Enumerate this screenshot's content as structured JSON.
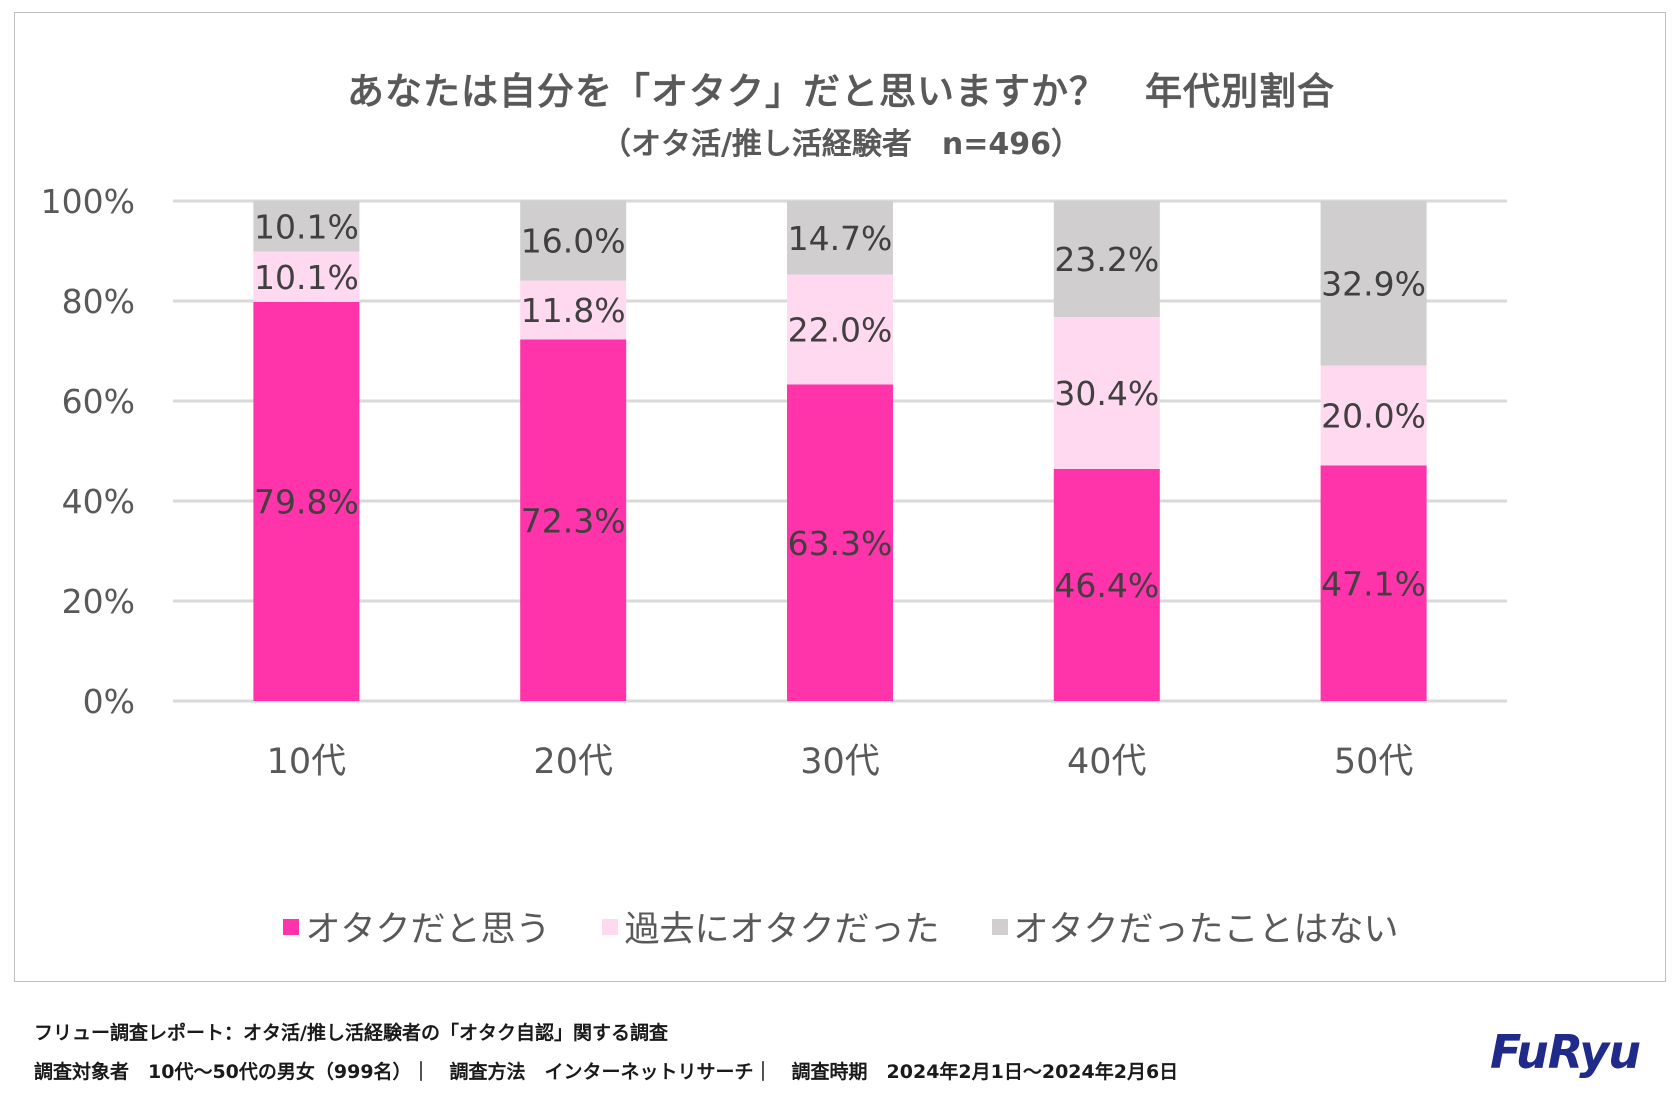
{
  "chart_data": {
    "type": "bar",
    "stacked": true,
    "title": "あなたは自分を「オタク」だと思いますか？　年代別割合",
    "subtitle": "（オタ活/推し活経験者　n=496）",
    "categories": [
      "10代",
      "20代",
      "30代",
      "40代",
      "50代"
    ],
    "series": [
      {
        "name": "オタクだと思う",
        "values": [
          79.8,
          72.3,
          63.3,
          46.4,
          47.1
        ],
        "labels": [
          "79.8%",
          "72.3%",
          "63.3%",
          "46.4%",
          "47.1%"
        ],
        "color": "#ff33aa"
      },
      {
        "name": "過去にオタクだった",
        "values": [
          10.1,
          11.8,
          22.0,
          30.4,
          20.0
        ],
        "labels": [
          "10.1%",
          "11.8%",
          "22.0%",
          "30.4%",
          "20.0%"
        ],
        "color": "#ffd9f0"
      },
      {
        "name": "オタクだったことはない",
        "values": [
          10.1,
          16.0,
          14.7,
          23.2,
          32.9
        ],
        "labels": [
          "10.1%",
          "16.0%",
          "14.7%",
          "23.2%",
          "32.9%"
        ],
        "color": "#d0cece"
      }
    ],
    "ylim": [
      0,
      100
    ],
    "yticks": [
      "0%",
      "20%",
      "40%",
      "60%",
      "80%",
      "100%"
    ],
    "legend_position": "bottom",
    "grid": true
  },
  "footer": {
    "line1": "フリュー調査レポート：オタ活/推し活経験者の「オタク自認」関する調査",
    "line2": "調査対象者　10代～50代の男女（999名）｜　調査方法　インターネットリサーチ｜　調査時期　2024年2月1日～2024年2月6日"
  },
  "logo_text": "FuRyu"
}
